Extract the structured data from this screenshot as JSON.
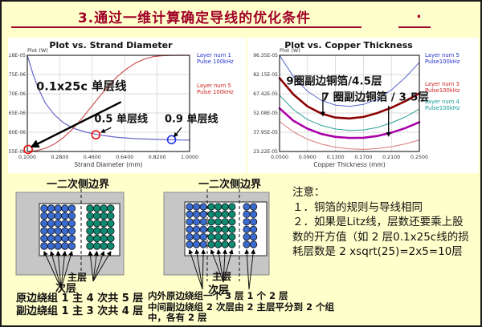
{
  "header": {
    "title": "3.通过一维计算确定导线的优化条件",
    "dot": "."
  },
  "chart_data": [
    {
      "type": "line",
      "title": "Plot vs. Strand Diameter",
      "corner_label": "Plot (W)",
      "xlabel": "Strand Diameter (mm)",
      "ylabel": "Plot (W)",
      "x_range": [
        0.1,
        1.0
      ],
      "y_range": [
        21.55,
        111.8
      ],
      "grid": true,
      "legend_position": "right",
      "x_ticks": [
        "0.1000",
        "0.2800",
        "0.4600",
        "0.6400",
        "0.8200",
        "1.0000"
      ],
      "y_ticks": [
        "11.18E-05",
        "93.75E-06",
        "75.70E-06",
        "57.65E-06",
        "39.60E-06",
        "21.55E-06"
      ],
      "legend": [
        {
          "line1": "Layer num 1",
          "line2": "Pulse 100kHz",
          "color": "#2233cc",
          "ly": 24
        },
        {
          "line1": "Layer num 5",
          "line2": "Pulse 100kHz",
          "color": "#cc2222",
          "ly": 62
        }
      ],
      "series": [
        {
          "name": "Layer num 1",
          "color": "#6666cc",
          "width": 1.2,
          "x": [
            0.1,
            0.13,
            0.16,
            0.2,
            0.25,
            0.3,
            0.36,
            0.43,
            0.5,
            0.6,
            0.7,
            0.8,
            0.9,
            1.0
          ],
          "y": [
            111.8,
            95,
            81,
            67,
            56,
            48.5,
            43,
            39.5,
            37,
            34.8,
            33.6,
            33.0,
            32.5,
            32.2
          ]
        },
        {
          "name": "Layer num 5",
          "color": "#cc5555",
          "width": 1.2,
          "x": [
            0.1,
            0.15,
            0.2,
            0.25,
            0.3,
            0.35,
            0.4,
            0.45,
            0.5,
            0.55,
            0.6,
            0.65,
            0.7,
            0.75,
            0.8,
            0.85,
            0.9,
            0.95,
            1.0
          ],
          "y": [
            21.6,
            22.3,
            24.5,
            28.5,
            34.5,
            42.5,
            52,
            62.5,
            73,
            83,
            92,
            99,
            104.5,
            108.3,
            110.6,
            111.4,
            111.7,
            111.8,
            111.8
          ]
        }
      ],
      "markers": [
        {
          "x": 0.105,
          "y": 23.5,
          "color": "#ee1111"
        },
        {
          "x": 0.48,
          "y": 37.2,
          "color": "#ee1111"
        },
        {
          "x": 0.9,
          "y": 32.6,
          "color": "#2233ee"
        }
      ],
      "annotations": [
        {
          "text": "0.1x25c 单层线",
          "tx": 0.4,
          "ty": 79,
          "size": 14.5,
          "thick": true,
          "arrow_from": [
            0.62,
            68
          ],
          "arrow_to": [
            0.125,
            26
          ]
        },
        {
          "text": "0.5 单层线",
          "tx": 0.62,
          "ty": 49,
          "size": 13,
          "arrow_from": [
            0.565,
            44
          ],
          "arrow_to": [
            0.51,
            39.5
          ]
        },
        {
          "text": "0.9 单层线",
          "tx": 1.01,
          "ty": 49,
          "size": 13,
          "arrow_from": [
            0.955,
            44
          ],
          "arrow_to": [
            0.915,
            35.5
          ]
        }
      ]
    },
    {
      "type": "line",
      "title": "Plot vs. Copper Thickness",
      "corner_label": "Plot (W)",
      "xlabel": "Copper Thickness (mm)",
      "ylabel": "Plot (W)",
      "x_range": [
        0.05,
        0.25
      ],
      "y_range": [
        23.22,
        96.35
      ],
      "grid": true,
      "legend_position": "right",
      "x_ticks": [
        "0.0500",
        "0.0900",
        "0.1300",
        "0.1700",
        "0.2100",
        "0.2500"
      ],
      "y_ticks": [
        "96.35E-05",
        "82.15E-05",
        "67.42E-05",
        "52.08E-05",
        "37.95E-05",
        "23.22E-05"
      ],
      "legend": [
        {
          "line1": "Layer num 5",
          "line2": "Pulse100kHz",
          "color": "#2233cc",
          "ly": 24
        },
        {
          "line1": "Layer num 3",
          "line2": "Pulse100kHz",
          "color": "#cc2222",
          "ly": 60
        },
        {
          "line1": "Layer num 4",
          "line2": "Pulse100kHz",
          "color": "#119999",
          "ly": 82
        }
      ],
      "series": [
        {
          "name": "Layer num 5",
          "color": "#5566cc",
          "width": 1,
          "x": [
            0.05,
            0.07,
            0.09,
            0.11,
            0.13,
            0.15,
            0.17,
            0.19,
            0.21,
            0.23,
            0.25
          ],
          "y": [
            96.3,
            80,
            69,
            62,
            58.5,
            57.5,
            59,
            63,
            70,
            79.5,
            91
          ]
        },
        {
          "name": "Layer num 3",
          "color": "#8b0000",
          "width": 2.6,
          "x": [
            0.05,
            0.07,
            0.09,
            0.11,
            0.13,
            0.15,
            0.17,
            0.19,
            0.21,
            0.23,
            0.25
          ],
          "y": [
            79,
            66.5,
            57.5,
            52,
            49,
            48.3,
            49.5,
            52.5,
            56.5,
            61.5,
            67.5
          ]
        },
        {
          "name": "Layer num 4",
          "color": "#2a9d9d",
          "width": 1,
          "x": [
            0.05,
            0.07,
            0.09,
            0.11,
            0.13,
            0.15,
            0.17,
            0.19,
            0.21,
            0.23,
            0.25
          ],
          "y": [
            66,
            55,
            47.5,
            43,
            40.3,
            39.2,
            39.6,
            41.5,
            45,
            49.5,
            55.5
          ]
        },
        {
          "name": "",
          "color": "#aa00aa",
          "width": 2.6,
          "x": [
            0.05,
            0.07,
            0.09,
            0.11,
            0.13,
            0.15,
            0.17,
            0.19,
            0.21,
            0.23,
            0.25
          ],
          "y": [
            56,
            46.5,
            40.5,
            36.5,
            34.3,
            33.5,
            33.6,
            35,
            37.5,
            41,
            45.5
          ]
        },
        {
          "name": "",
          "color": "#dd7777",
          "width": 1,
          "x": [
            0.05,
            0.07,
            0.09,
            0.11,
            0.13,
            0.15,
            0.17,
            0.19,
            0.21,
            0.23,
            0.25
          ],
          "y": [
            46,
            38,
            32.5,
            28.8,
            26.5,
            25.2,
            24.8,
            25.4,
            26.8,
            29,
            32
          ]
        }
      ],
      "markers": [],
      "annotations": [
        {
          "text": "9圈副边铜箔/4.5层",
          "tx": 0.128,
          "ty": 74,
          "size": 13.5,
          "arrow_from": [
            0.112,
            68
          ],
          "arrow_to": [
            0.112,
            50.5
          ]
        },
        {
          "text": "7 圈副边铜箔 / 3.5层",
          "tx": 0.187,
          "ty": 62,
          "size": 13.5,
          "arrow_from": [
            0.206,
            58
          ],
          "arrow_to": [
            0.206,
            35
          ]
        }
      ]
    }
  ],
  "diagrams": [
    {
      "title": "一二次侧边界",
      "groups": [
        {
          "cols": 5,
          "rows": 6,
          "color": "#3a6bd0"
        },
        {
          "cols": 4,
          "rows": 6,
          "color": "#0d8a72"
        }
      ],
      "labels": {
        "main": "主层",
        "sub": "次层"
      },
      "captions": [
        "原边绕组 1 主 4 次共 5 层",
        "副边绕组 1 主 3 次共 4 层"
      ]
    },
    {
      "title": "一二次侧边界",
      "groups": [
        {
          "cols": 3,
          "rows": 6,
          "color": "#3a6bd0"
        },
        {
          "cols": 4,
          "rows": 6,
          "color": "#0d8a72"
        },
        {
          "cols": 2,
          "rows": 6,
          "color": "#3a6bd0"
        }
      ],
      "labels": {
        "main": "主层",
        "sub": "次层"
      },
      "captions": [
        "内外原边绕组一个 3 层 1 个 2 层",
        "中间副边绕组 2 次层由 2 主层平分到 2 个组",
        "中，各有 2 层"
      ]
    }
  ],
  "notes": {
    "lines": [
      "注意：",
      "１．铜箔的规则与导线相同",
      "２．如果是Litz线，层数还要乘上股",
      "数的开方值（如 2 层0.1x25c线的损",
      "耗层数是 2 xsqrt(25)=2x5=10层"
    ]
  },
  "colors": {
    "background": "#ffffcb",
    "title": "#a00028",
    "box_gray": "#c6c6c6",
    "circle_blue": "#3a6bd0",
    "circle_teal": "#0d8a72",
    "curve_blue": "#6666cc",
    "curve_red": "#cc5555",
    "curve_darkred": "#8b0000",
    "curve_teal": "#2a9d9d",
    "curve_magenta": "#aa00aa",
    "curve_pink": "#dd7777"
  }
}
